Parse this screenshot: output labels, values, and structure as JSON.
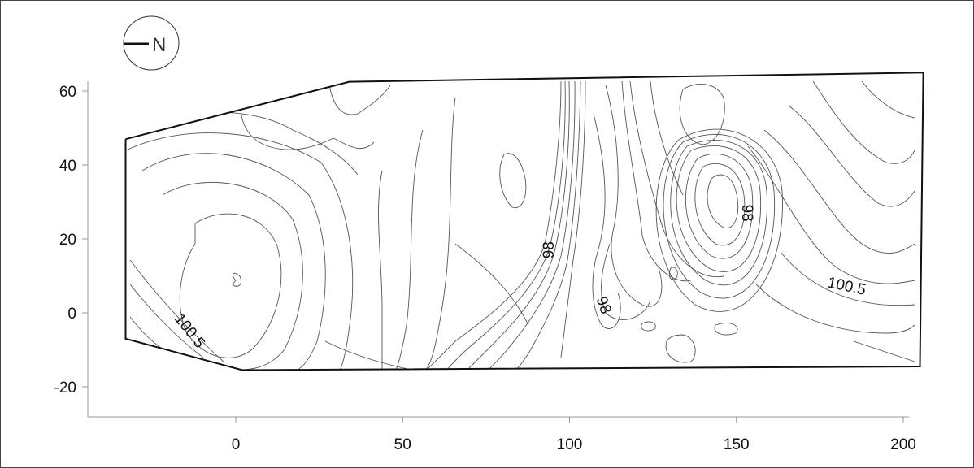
{
  "chart_data": {
    "type": "contour",
    "title": "",
    "xlabel": "",
    "ylabel": "",
    "xlim": [
      -42,
      208
    ],
    "ylim": [
      -28,
      63
    ],
    "x_ticks": [
      0,
      50,
      100,
      150,
      200
    ],
    "y_ticks": [
      -20,
      0,
      20,
      40,
      60
    ],
    "grid": false,
    "legend": "none",
    "north_arrow": {
      "label": "N",
      "position": "top-left"
    },
    "boundary": [
      [
        -33,
        47
      ],
      [
        -33,
        -7
      ],
      [
        2,
        -15.5
      ],
      [
        205,
        -14.5
      ],
      [
        206,
        65
      ],
      [
        34,
        62.5
      ],
      [
        -33,
        47
      ]
    ],
    "contour_labels": [
      {
        "text": "100.5",
        "x": -14,
        "y": -5,
        "angle": 52
      },
      {
        "text": "98",
        "x": 94,
        "y": 17,
        "angle": -90
      },
      {
        "text": "98",
        "x": 110,
        "y": 2,
        "angle": 70
      },
      {
        "text": "98",
        "x": 153,
        "y": 27,
        "angle": 90
      },
      {
        "text": "100.5",
        "x": 183,
        "y": 7,
        "angle": 12
      }
    ],
    "colors": {
      "boundary": "#111111",
      "contour": "#555555"
    }
  }
}
